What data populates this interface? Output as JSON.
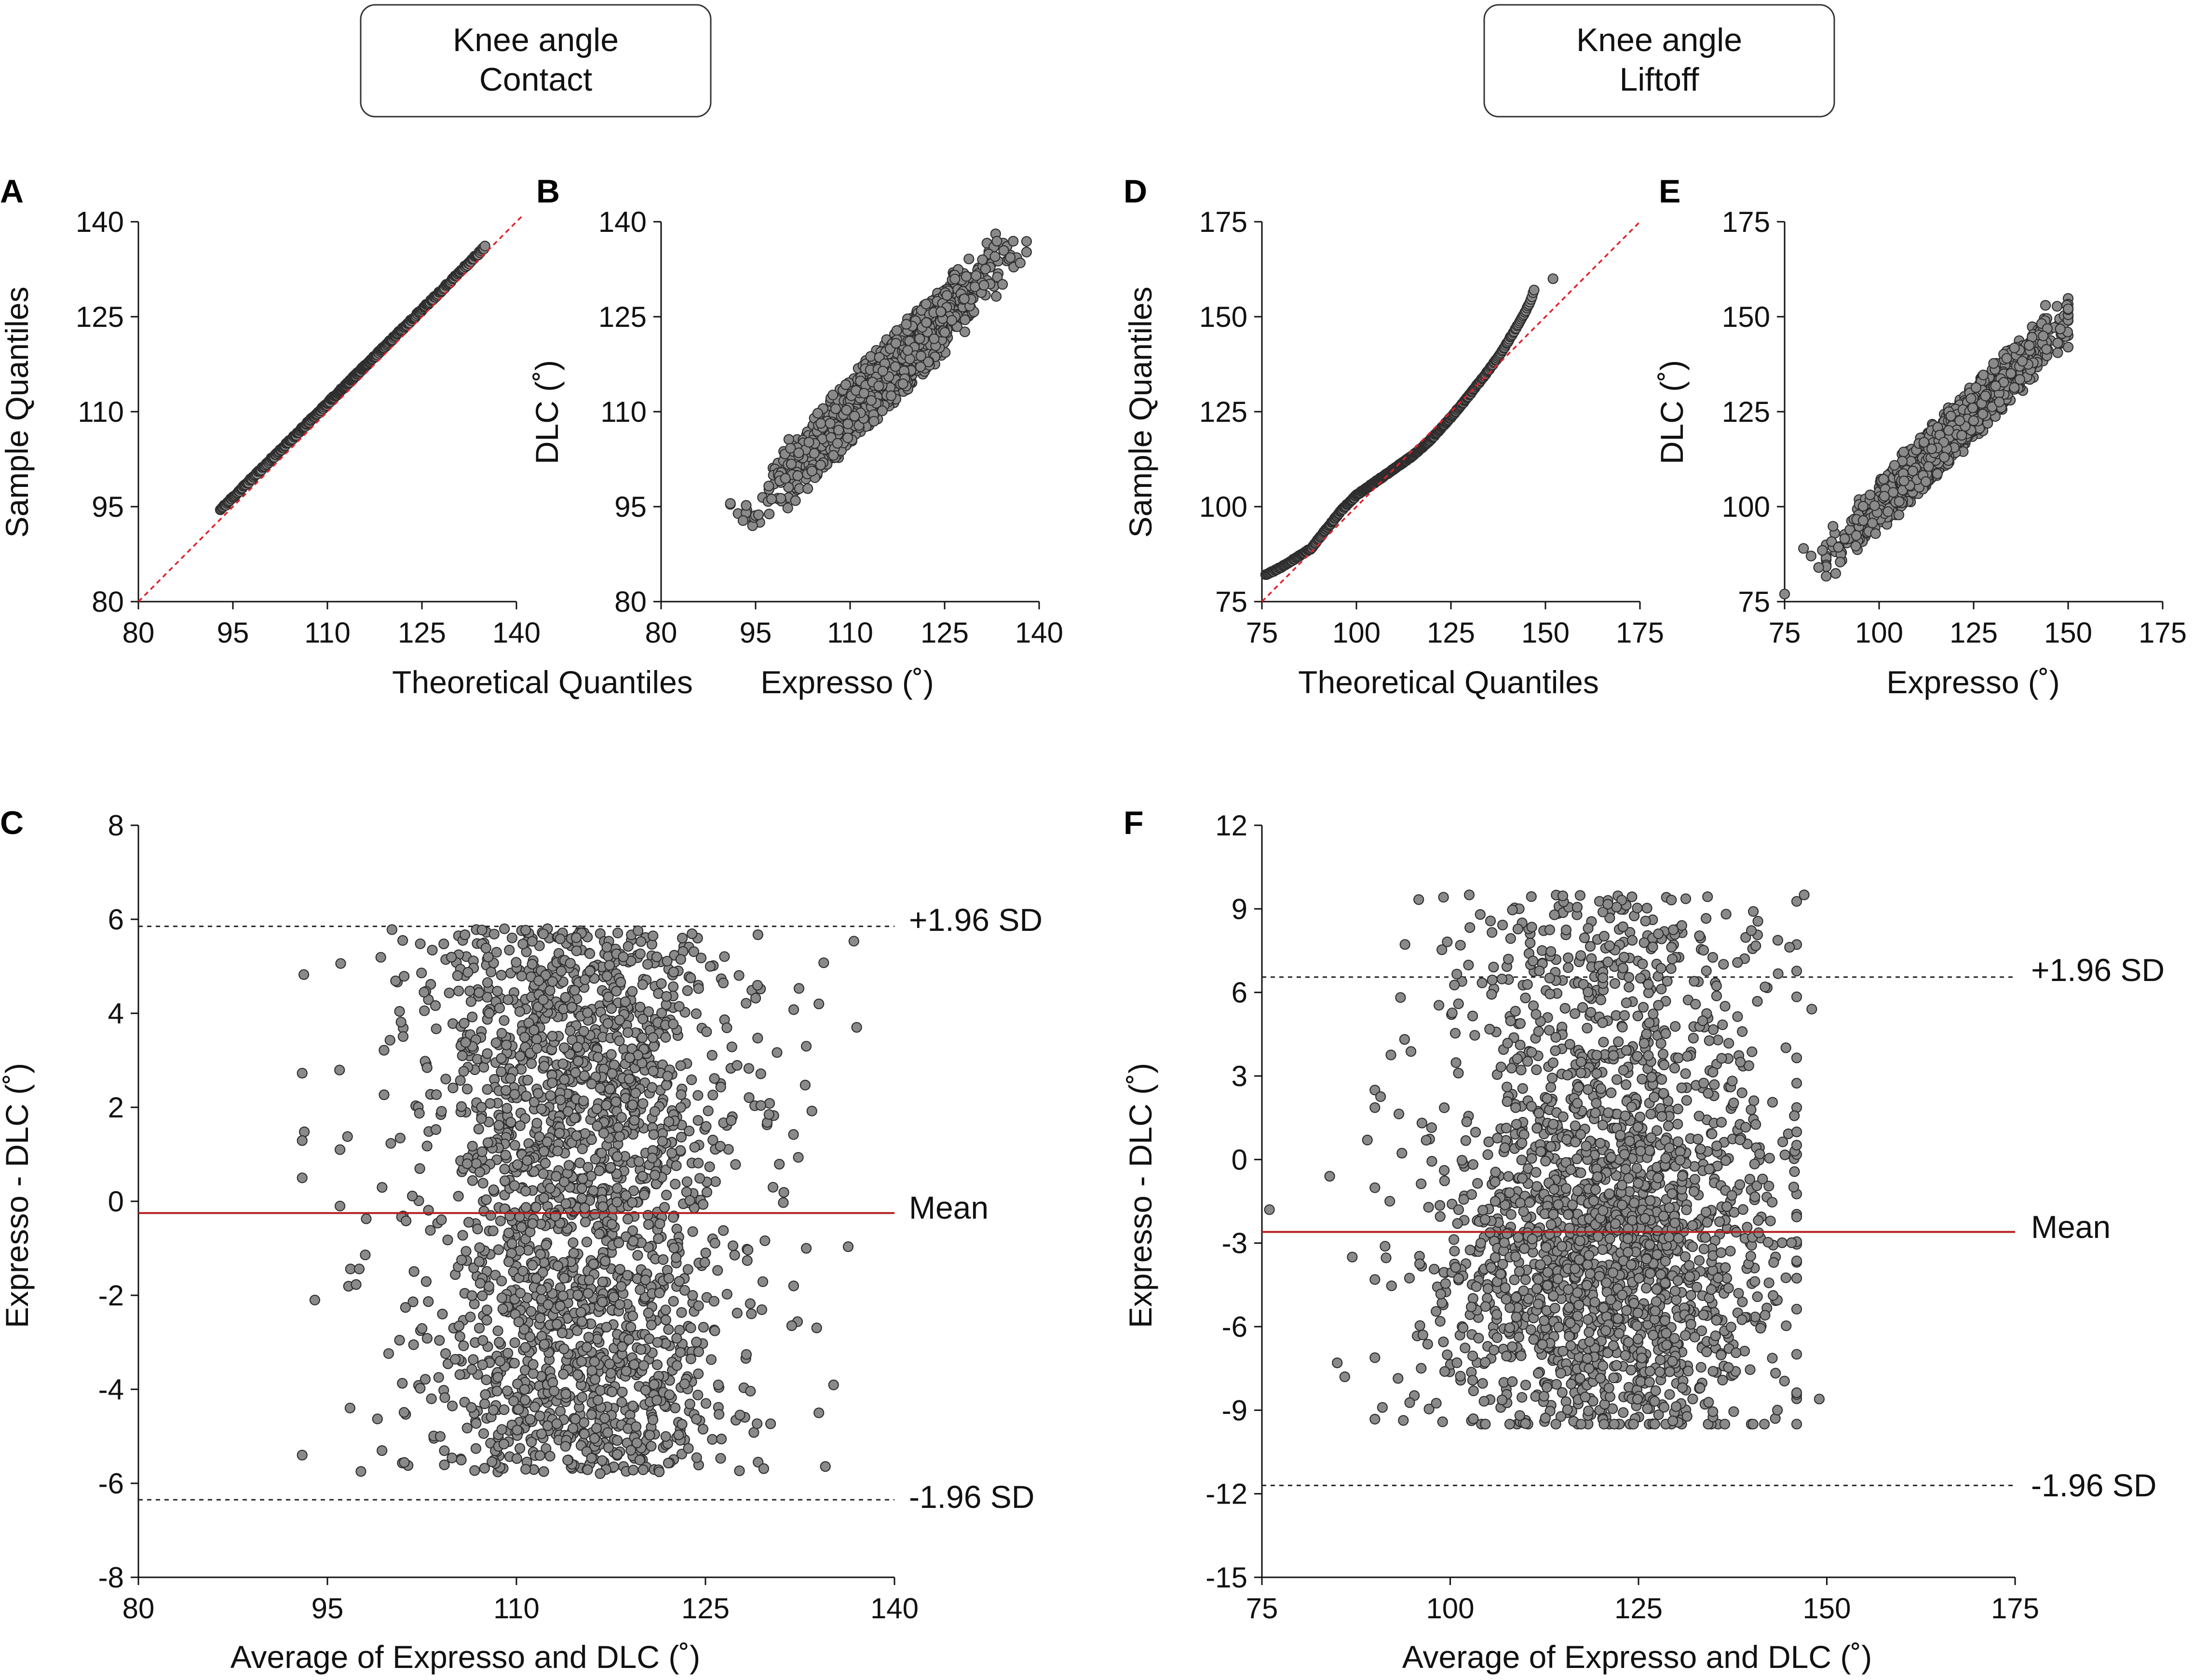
{
  "headers": {
    "left": {
      "line1": "Knee angle",
      "line2": "Contact"
    },
    "right": {
      "line1": "Knee angle",
      "line2": "Liftoff"
    }
  },
  "colors": {
    "points_fill": "#8a8a8a",
    "points_stroke": "#2e2e2e",
    "reference_line": "#e0202a",
    "mean_line": "#b41e1e",
    "axis": "#111111"
  },
  "chart_data": [
    {
      "id": "A",
      "panel_label": "A",
      "type": "scatter",
      "subtype": "qq-plot",
      "xlabel": "Theoretical Quantiles",
      "ylabel": "Sample Quantiles",
      "xlim": [
        80,
        140
      ],
      "ylim": [
        80,
        140
      ],
      "xticks": [
        80,
        95,
        110,
        125,
        140
      ],
      "yticks": [
        80,
        95,
        110,
        125,
        140
      ],
      "reference_line": {
        "from": [
          80,
          80
        ],
        "to": [
          141,
          141
        ],
        "style": "dashed-red"
      },
      "description": "Sorted sample quantiles vs theoretical normal quantiles, n≈2400, nearly on identity line",
      "n_points": 420,
      "x_range": [
        93,
        135
      ],
      "y_range": [
        94.5,
        136
      ],
      "seed": 11
    },
    {
      "id": "B",
      "panel_label": "B",
      "type": "scatter",
      "xlabel": "Expresso (˚)",
      "ylabel": "DLC (˚)",
      "xlim": [
        80,
        140
      ],
      "ylim": [
        80,
        140
      ],
      "xticks": [
        80,
        95,
        110,
        125,
        140
      ],
      "yticks": [
        80,
        95,
        110,
        125,
        140
      ],
      "x_center": 115,
      "x_sd": 7.5,
      "x_range": [
        91,
        138
      ],
      "residual_half_width": 6,
      "extra_points": [
        [
          91,
          95.5
        ],
        [
          93,
          92.8
        ],
        [
          93.5,
          95.2
        ],
        [
          133,
          134.5
        ],
        [
          131,
          134
        ],
        [
          137,
          133.5
        ]
      ],
      "n_points": 1700,
      "seed": 23
    },
    {
      "id": "C",
      "panel_label": "C",
      "type": "scatter",
      "subtype": "bland-altman",
      "xlabel": "Average of Expresso and DLC (˚)",
      "ylabel": "Expresso - DLC (˚)",
      "xlim": [
        80,
        140
      ],
      "ylim": [
        -8,
        8
      ],
      "xticks": [
        80,
        95,
        110,
        125,
        140
      ],
      "yticks": [
        -8,
        -6,
        -4,
        -2,
        0,
        2,
        4,
        6,
        8
      ],
      "mean": -0.25,
      "upper_loa": 5.85,
      "lower_loa": -6.35,
      "mean_label": "Mean",
      "upper_label": "+1.96 SD",
      "lower_label": "-1.96 SD",
      "x_center": 115,
      "x_sd": 6.5,
      "x_range": [
        93,
        137
      ],
      "y_range": [
        -5.8,
        5.8
      ],
      "extra_points": [
        [
          93,
          0.5
        ],
        [
          93,
          -5.4
        ],
        [
          94,
          -2.1
        ],
        [
          96,
          1.1
        ],
        [
          96,
          -0.1
        ],
        [
          134,
          4.2
        ],
        [
          134,
          -4.5
        ],
        [
          133,
          3.3
        ],
        [
          133,
          -1.0
        ],
        [
          132,
          -1.8
        ]
      ],
      "n_points": 2100,
      "seed": 37
    },
    {
      "id": "D",
      "panel_label": "D",
      "type": "scatter",
      "subtype": "qq-plot",
      "xlabel": "Theoretical Quantiles",
      "ylabel": "Sample Quantiles",
      "xlim": [
        75,
        175
      ],
      "ylim": [
        75,
        175
      ],
      "xticks": [
        75,
        100,
        125,
        150,
        175
      ],
      "yticks": [
        75,
        100,
        125,
        150,
        175
      ],
      "reference_line": {
        "from": [
          75,
          75
        ],
        "to": [
          175,
          175
        ],
        "style": "dashed-red"
      },
      "description": "Sample quantiles bow slightly above reference at upper tail (~157 at theoretical 147)",
      "curve": [
        [
          76,
          82
        ],
        [
          80,
          84
        ],
        [
          84,
          86.5
        ],
        [
          88,
          89
        ],
        [
          92,
          94
        ],
        [
          96,
          99
        ],
        [
          100,
          103
        ],
        [
          105,
          106.5
        ],
        [
          110,
          110
        ],
        [
          115,
          113.5
        ],
        [
          120,
          118
        ],
        [
          125,
          123.5
        ],
        [
          130,
          129.5
        ],
        [
          135,
          136
        ],
        [
          138,
          140
        ],
        [
          141,
          145
        ],
        [
          144,
          150
        ],
        [
          146,
          154
        ],
        [
          147,
          157
        ]
      ],
      "extra_points": [
        [
          152,
          160
        ]
      ],
      "n_points": 420,
      "seed": 41
    },
    {
      "id": "E",
      "panel_label": "E",
      "type": "scatter",
      "xlabel": "Expresso (˚)",
      "ylabel": "DLC (˚)",
      "xlim": [
        75,
        175
      ],
      "ylim": [
        75,
        175
      ],
      "xticks": [
        75,
        100,
        125,
        150,
        175
      ],
      "yticks": [
        75,
        100,
        125,
        150,
        175
      ],
      "x_center": 120,
      "x_sd": 12,
      "x_range": [
        86,
        150
      ],
      "residual_half_width": 8,
      "extra_points": [
        [
          75,
          77
        ],
        [
          80,
          89
        ],
        [
          82,
          87
        ],
        [
          84,
          84
        ],
        [
          85,
          88.5
        ],
        [
          144,
          153
        ],
        [
          150,
          142
        ]
      ],
      "n_points": 1700,
      "seed": 53
    },
    {
      "id": "F",
      "panel_label": "F",
      "type": "scatter",
      "subtype": "bland-altman",
      "xlabel": "Average of Expresso and DLC (˚)",
      "ylabel": "Expresso - DLC (˚)",
      "xlim": [
        75,
        175
      ],
      "ylim": [
        -15,
        12
      ],
      "xticks": [
        75,
        100,
        125,
        150,
        175
      ],
      "yticks": [
        -15,
        -12,
        -9,
        -6,
        -3,
        0,
        3,
        6,
        9,
        12
      ],
      "mean": -2.6,
      "upper_loa": 6.55,
      "lower_loa": -11.7,
      "mean_label": "Mean",
      "upper_label": "+1.96 SD",
      "lower_label": "-1.96 SD",
      "x_center": 121,
      "x_sd": 11,
      "x_range": [
        90,
        146
      ],
      "y_range": [
        -9.5,
        9.5
      ],
      "y_skew": -3.5,
      "extra_points": [
        [
          76,
          -1.8
        ],
        [
          84,
          -0.6
        ],
        [
          85,
          -7.3
        ],
        [
          86,
          -7.8
        ],
        [
          87,
          -3.5
        ],
        [
          89,
          0.7
        ],
        [
          91,
          -8.9
        ],
        [
          147,
          9.5
        ],
        [
          148,
          5.4
        ],
        [
          149,
          -8.6
        ]
      ],
      "n_points": 2100,
      "seed": 67
    }
  ]
}
